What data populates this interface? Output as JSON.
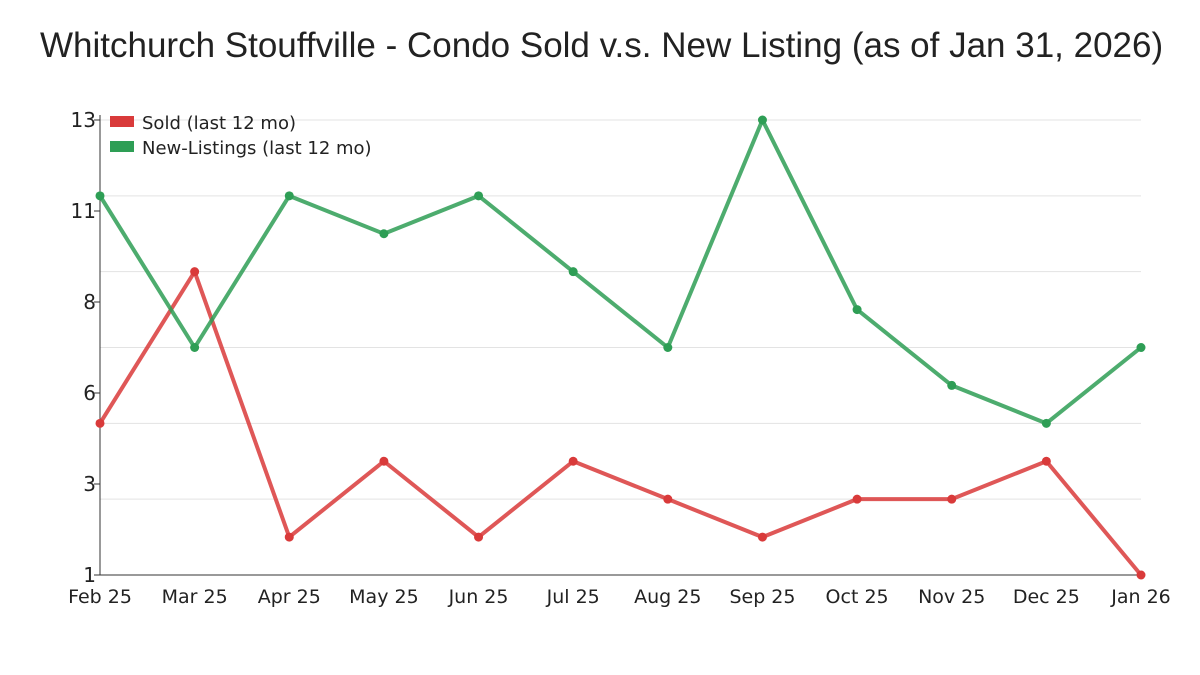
{
  "chart_data": {
    "type": "line",
    "title": "Whitchurch Stouffville - Condo Sold v.s. New Listing (as of Jan 31, 2026)",
    "xlabel": "",
    "ylabel": "",
    "categories": [
      "Feb 25",
      "Mar 25",
      "Apr 25",
      "May 25",
      "Jun 25",
      "Jul 25",
      "Aug 25",
      "Sep 25",
      "Oct 25",
      "Nov 25",
      "Dec 25",
      "Jan 26"
    ],
    "ylim": [
      1,
      13
    ],
    "yticks": [
      1,
      3.4,
      5.8,
      8.2,
      10.6,
      13
    ],
    "ytick_labels": [
      "1",
      "3",
      "6",
      "8",
      "11",
      "13"
    ],
    "grid": true,
    "legend_position": "top-left",
    "series": [
      {
        "name": "Sold (last 12 mo)",
        "color": "#d93a3a",
        "values": [
          5,
          9,
          2,
          4,
          2,
          4,
          3,
          2,
          3,
          3,
          4,
          1
        ]
      },
      {
        "name": "New-Listings (last 12 mo)",
        "color": "#2e9e55",
        "values": [
          11,
          7,
          11,
          10,
          11,
          9,
          7,
          13,
          8,
          6,
          5,
          7
        ]
      }
    ]
  }
}
